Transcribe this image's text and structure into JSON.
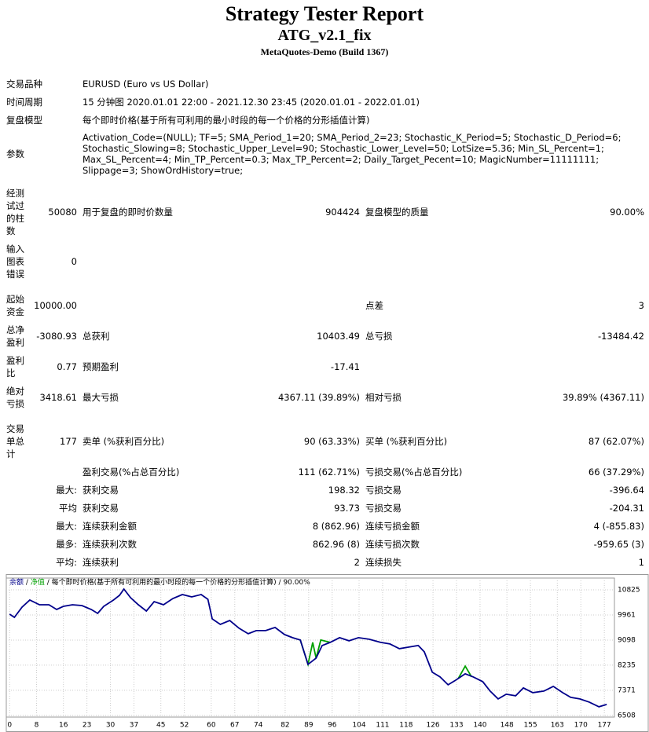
{
  "header": {
    "title": "Strategy Tester Report",
    "subtitle": "ATG_v2.1_fix",
    "build": "MetaQuotes-Demo (Build 1367)"
  },
  "info": [
    {
      "label": "交易品种",
      "value": "EURUSD (Euro vs US Dollar)"
    },
    {
      "label": "时间周期",
      "value": "15 分钟图 2020.01.01 22:00 - 2021.12.30 23:45 (2020.01.01 - 2022.01.01)"
    },
    {
      "label": "复盘模型",
      "value": "每个即时价格(基于所有可利用的最小时段的每一个价格的分形插值计算)"
    },
    {
      "label": "参数",
      "value": "Activation_Code=(NULL); TF=5; SMA_Period_1=20; SMA_Period_2=23; Stochastic_K_Period=5; Stochastic_D_Period=6; Stochastic_Slowing=8; Stochastic_Upper_Level=90; Stochastic_Lower_Level=50; LotSize=5.36; Min_SL_Percent=1; Max_SL_Percent=4; Min_TP_Percent=0.3; Max_TP_Percent=2; Daily_Target_Pecent=10; MagicNumber=11111111; Slippage=3; ShowOrdHistory=true;"
    }
  ],
  "stats": [
    {
      "label": "经测试过的柱数",
      "value": "50080",
      "label2": "用于复盘的即时价数量",
      "value2": "904424",
      "label3": "复盘模型的质量",
      "value3": "90.00%"
    },
    {
      "label": "输入图表错误",
      "value": "0"
    },
    {
      "label": "起始资金",
      "value": "10000.00",
      "label3": "点差",
      "value3": "3"
    },
    {
      "label": "总净盈利",
      "value": "-3080.93",
      "label2": "总获利",
      "value2": "10403.49",
      "label3": "总亏损",
      "value3": "-13484.42"
    },
    {
      "label": "盈利比",
      "value": "0.77",
      "label2": "预期盈利",
      "value2": "-17.41"
    },
    {
      "label": "绝对亏损",
      "value": "3418.61",
      "label2": "最大亏损",
      "value2": "4367.11 (39.89%)",
      "label3": "相对亏损",
      "value3": "39.89% (4367.11)"
    },
    {
      "label": "交易单总计",
      "value": "177",
      "label2": "卖单 (%获利百分比)",
      "value2": "90 (63.33%)",
      "label3": "买单 (%获利百分比)",
      "value3": "87 (62.07%)"
    },
    {
      "label2": "盈利交易(%占总百分比)",
      "value2": "111 (62.71%)",
      "label3": "亏损交易(%占总百分比)",
      "value3": "66 (37.29%)"
    },
    {
      "value": "最大:",
      "label2": "获利交易",
      "value2": "198.32",
      "label3": "亏损交易",
      "value3": "-396.64"
    },
    {
      "value": "平均",
      "label2": "获利交易",
      "value2": "93.73",
      "label3": "亏损交易",
      "value3": "-204.31"
    },
    {
      "value": "最大:",
      "label2": "连续获利金额",
      "value2": "8 (862.96)",
      "label3": "连续亏损金额",
      "value3": "4 (-855.83)"
    },
    {
      "value": "最多:",
      "label2": "连续获利次数",
      "value2": "862.96 (8)",
      "label3": "连续亏损次数",
      "value3": "-959.65 (3)"
    },
    {
      "value": "平均:",
      "label2": "连续获利",
      "value2": "2",
      "label3": "连续损失",
      "value3": "1"
    }
  ],
  "chart_data": {
    "type": "line",
    "note": "每个即时价格(基于所有可利用的最小时段的每一个价格的分形插值计算)",
    "quality": "90.00%",
    "separator": "/",
    "grid": true,
    "xlim": [
      -1,
      180
    ],
    "ylim": [
      6450,
      11230
    ],
    "xticks": [
      0,
      8,
      16,
      23,
      30,
      37,
      45,
      52,
      60,
      67,
      74,
      82,
      89,
      96,
      104,
      111,
      118,
      126,
      133,
      140,
      148,
      155,
      163,
      170,
      177
    ],
    "yticks": [
      6508,
      7371,
      8235,
      9098,
      9961,
      10825
    ],
    "series": [
      {
        "name": "净值",
        "color": "#00a000",
        "x": [
          86.5,
          88.8,
          90.2,
          91.2,
          92.6,
          95.4,
          null,
          133.5,
          135.6,
          137.5
        ],
        "values": [
          9098,
          8262,
          9017,
          8477,
          9098,
          9017,
          null,
          7776,
          8200,
          7830
        ]
      },
      {
        "name": "余额",
        "color": "#00008b",
        "x": [
          0,
          1.4,
          3.7,
          6,
          8.9,
          11.7,
          14,
          16,
          18.7,
          21.5,
          24.3,
          26.2,
          28,
          30.9,
          32.7,
          34,
          36,
          38.3,
          40.7,
          43,
          45.8,
          48.6,
          51.4,
          54.2,
          57,
          59,
          60.3,
          62.7,
          65.5,
          68.3,
          71,
          73.4,
          76.2,
          79,
          81.8,
          84.2,
          86.5,
          88.8,
          91.2,
          93,
          95.4,
          98.2,
          101,
          103.8,
          107,
          110.4,
          113.2,
          116,
          118.8,
          121.6,
          123.4,
          125.8,
          128.1,
          130.5,
          132.8,
          135.6,
          138,
          140.8,
          143,
          145.4,
          147.8,
          150.6,
          152.9,
          155.7,
          159,
          161.8,
          164.6,
          167,
          169.7,
          172.5,
          175.4,
          177.7
        ],
        "values": [
          9989,
          9881,
          10231,
          10474,
          10312,
          10312,
          10150,
          10258,
          10312,
          10285,
          10150,
          10015,
          10258,
          10474,
          10636,
          10852,
          10555,
          10312,
          10096,
          10420,
          10312,
          10528,
          10663,
          10582,
          10663,
          10501,
          9827,
          9638,
          9773,
          9503,
          9314,
          9422,
          9422,
          9530,
          9287,
          9179,
          9098,
          8262,
          8477,
          8909,
          9017,
          9179,
          9071,
          9179,
          9125,
          9017,
          8963,
          8801,
          8856,
          8909,
          8693,
          7992,
          7830,
          7560,
          7722,
          7938,
          7830,
          7668,
          7344,
          7074,
          7236,
          7182,
          7452,
          7290,
          7344,
          7506,
          7290,
          7128,
          7074,
          6966,
          6805,
          6885
        ]
      }
    ]
  }
}
